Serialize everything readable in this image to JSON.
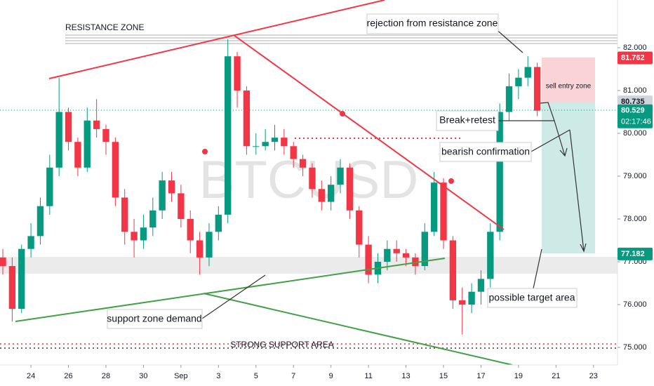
{
  "chart_data": {
    "type": "candlestick",
    "watermark": "BTCUSD",
    "up_color": "#089981",
    "down_color": "#f23645",
    "x": [
      22.5,
      23,
      23.5,
      24,
      24.5,
      25,
      25.5,
      26,
      26.5,
      27,
      27.5,
      28,
      28.5,
      29,
      29.5,
      30,
      30.5,
      31,
      31.5,
      32,
      32.5,
      33,
      33.5,
      34,
      34.5,
      35,
      35.5,
      36,
      36.5,
      37,
      37.5,
      38,
      38.5,
      39,
      39.5,
      40,
      40.5,
      41,
      41.5,
      42,
      42.5,
      43,
      43.5,
      44,
      44.5,
      45,
      45.5,
      46,
      46.5,
      47,
      47.5,
      48,
      48.5,
      49,
      49.5,
      50,
      50.5,
      51
    ],
    "open": [
      77100,
      76900,
      75900,
      77300,
      77600,
      78300,
      79200,
      80500,
      79800,
      79200,
      80300,
      80100,
      79800,
      78500,
      77700,
      77500,
      77800,
      78200,
      78900,
      78600,
      78000,
      77500,
      77100,
      77700,
      78100,
      81800,
      81000,
      79700,
      79700,
      79800,
      79900,
      79700,
      79400,
      79200,
      78700,
      78400,
      78800,
      79200,
      78200,
      77400,
      76700,
      77000,
      77300,
      77200,
      77100,
      76900,
      77700,
      78850,
      77500,
      76100,
      76000,
      76300,
      76600,
      77700,
      80500,
      81100,
      81300,
      81550
    ],
    "high": [
      77300,
      77100,
      77400,
      77900,
      78500,
      79500,
      81300,
      80600,
      79900,
      80600,
      80800,
      80200,
      79900,
      78700,
      78000,
      78100,
      78500,
      79100,
      79100,
      78800,
      78200,
      77700,
      77900,
      78300,
      82200,
      81900,
      81100,
      80000,
      80100,
      80200,
      80100,
      79800,
      79500,
      79300,
      78900,
      79000,
      79400,
      79300,
      78300,
      77600,
      77200,
      77500,
      77500,
      77300,
      77200,
      77900,
      79100,
      78950,
      77600,
      76400,
      76500,
      76800,
      77900,
      80700,
      81400,
      81500,
      81800,
      81650
    ],
    "low": [
      76700,
      75600,
      75800,
      77100,
      77400,
      78100,
      79000,
      79600,
      79000,
      79100,
      79900,
      79500,
      78300,
      77400,
      77100,
      77300,
      77600,
      78000,
      78400,
      77800,
      77200,
      76700,
      76900,
      77500,
      77900,
      80600,
      79500,
      79500,
      79600,
      79600,
      79500,
      79200,
      79000,
      78500,
      78200,
      78200,
      78600,
      78000,
      77100,
      76500,
      76500,
      76800,
      77000,
      76900,
      76700,
      76800,
      77600,
      77300,
      75900,
      75300,
      75800,
      76000,
      76400,
      77500,
      80300,
      80800,
      81100,
      80400
    ],
    "close": [
      76900,
      75900,
      77300,
      77600,
      78300,
      79200,
      80500,
      79800,
      79200,
      80300,
      80100,
      79800,
      78500,
      77700,
      77500,
      77800,
      78200,
      78900,
      78600,
      78000,
      77500,
      77100,
      77700,
      78100,
      81800,
      81000,
      79700,
      79700,
      79800,
      79900,
      79700,
      79400,
      79200,
      78700,
      78400,
      78800,
      79200,
      78200,
      77400,
      76700,
      77000,
      77300,
      77200,
      77100,
      76900,
      77700,
      78850,
      77500,
      76100,
      76000,
      76300,
      76600,
      77700,
      80500,
      81100,
      81300,
      81550,
      80529
    ],
    "xlim": [
      22.35,
      55.28
    ],
    "xticks": [
      {
        "value": 24,
        "label": "24"
      },
      {
        "value": 26,
        "label": "26"
      },
      {
        "value": 28,
        "label": "28"
      },
      {
        "value": 30,
        "label": "30"
      },
      {
        "value": 32,
        "label": "Sep"
      },
      {
        "value": 34,
        "label": "3"
      },
      {
        "value": 36,
        "label": "5"
      },
      {
        "value": 38,
        "label": "7"
      },
      {
        "value": 40,
        "label": "9"
      },
      {
        "value": 42,
        "label": "11"
      },
      {
        "value": 44,
        "label": "13"
      },
      {
        "value": 46,
        "label": "15"
      },
      {
        "value": 48,
        "label": "17"
      },
      {
        "value": 50,
        "label": "19"
      },
      {
        "value": 52,
        "label": "21"
      },
      {
        "value": 54,
        "label": "23"
      }
    ],
    "ylim": [
      74590,
      83115
    ],
    "yticks": [
      {
        "value": 82000,
        "label": "82.000"
      },
      {
        "value": 81000,
        "label": "81.000"
      },
      {
        "value": 80000,
        "label": "80.000"
      },
      {
        "value": 79000,
        "label": "79.000"
      },
      {
        "value": 78000,
        "label": "78.000"
      },
      {
        "value": 77000,
        "label": "77.000"
      },
      {
        "value": 76000,
        "label": "76.000"
      },
      {
        "value": 75000,
        "label": "75.000"
      }
    ],
    "price_tags": [
      {
        "value": 81762,
        "label": "81.762",
        "color": "#f23645"
      },
      {
        "value": 80735,
        "label": "80.735",
        "color": "#d1d4dc"
      },
      {
        "value": 80529,
        "label": "80.529",
        "color": "#089981"
      },
      {
        "value": 77182,
        "label": "77.182",
        "color": "#089981"
      }
    ],
    "countdown": "02:17:46",
    "annotations": [
      "RESISTANCE ZONE",
      "rejection from resistance zone",
      "sell entry zone",
      "Break+retest",
      "bearish confirmation",
      "possible target area",
      "support zone demand",
      "STRONG SUPPORT AREA"
    ]
  }
}
